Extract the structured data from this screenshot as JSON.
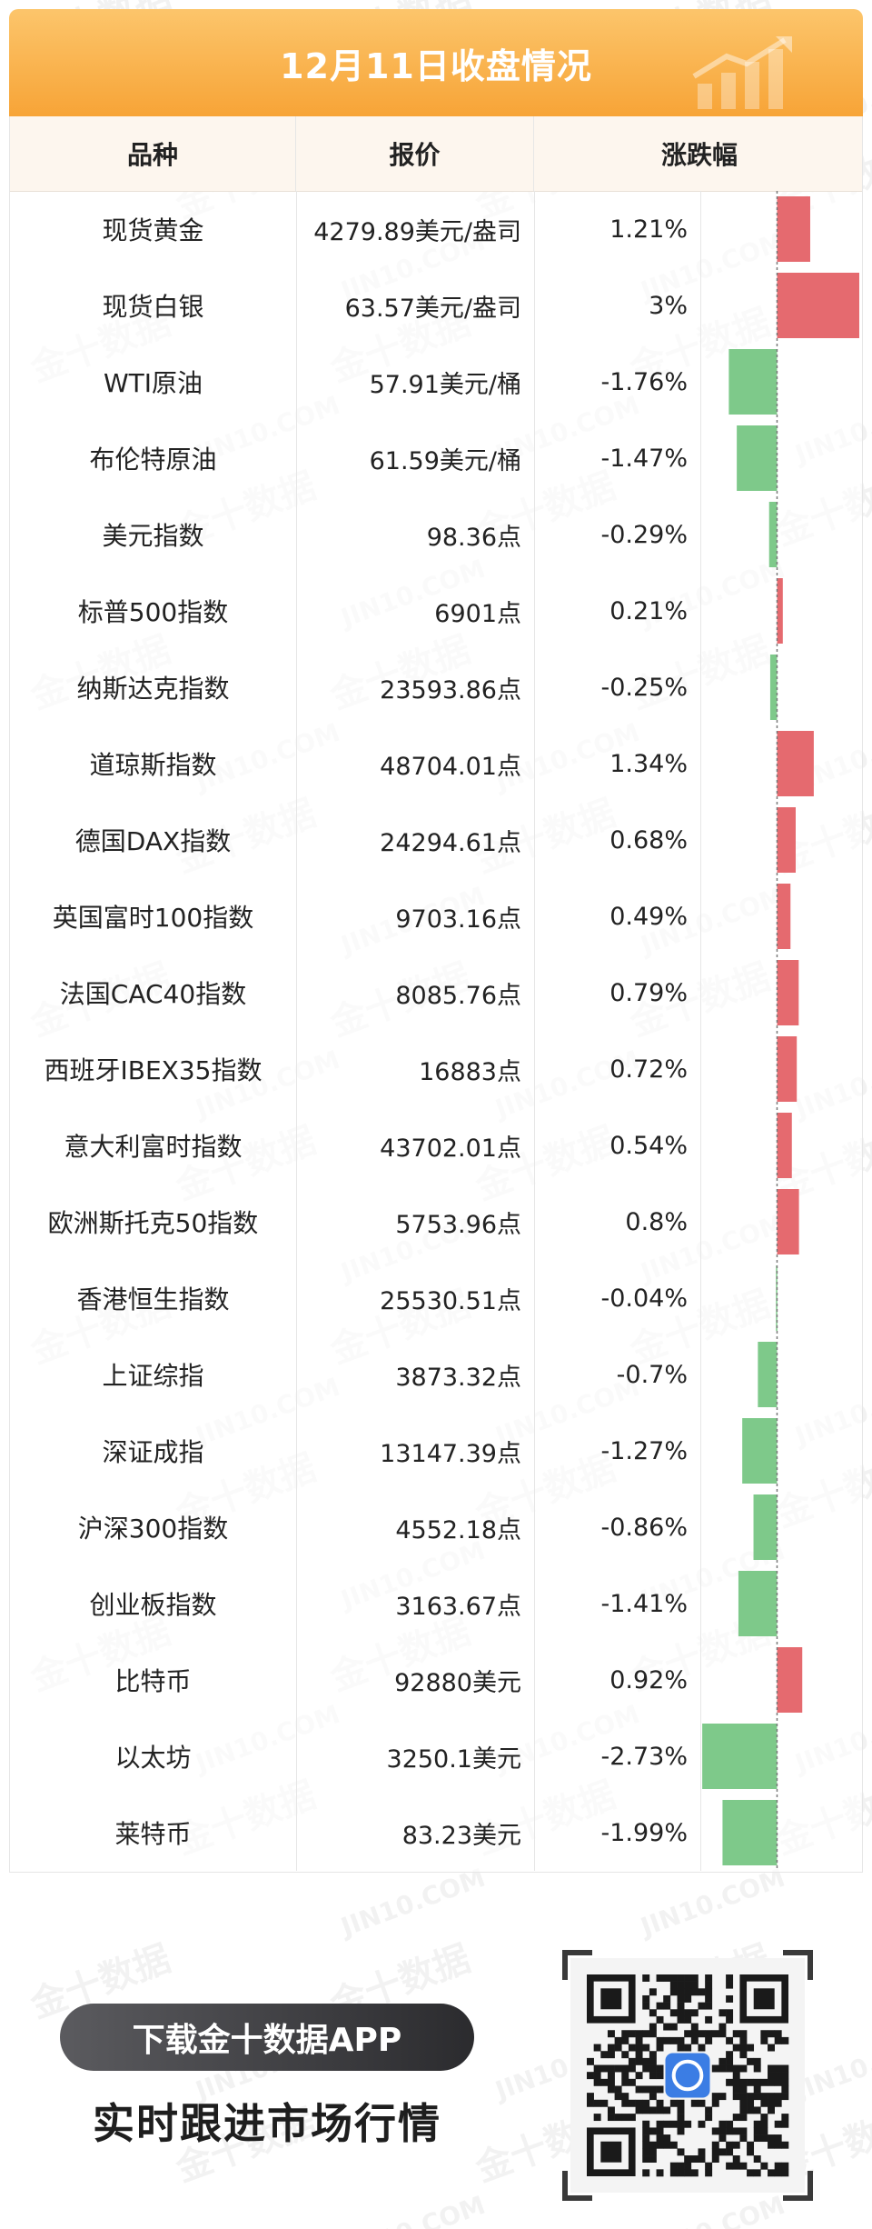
{
  "header": {
    "title": "12月11日收盘情况",
    "deco_icon": "rising-chart-icon"
  },
  "table": {
    "headers": [
      "品种",
      "报价",
      "涨跌幅"
    ]
  },
  "chart_data": {
    "type": "bar",
    "orientation": "horizontal",
    "categories": [
      "现货黄金",
      "现货白银",
      "WTI原油",
      "布伦特原油",
      "美元指数",
      "标普500指数",
      "纳斯达克指数",
      "道琼斯指数",
      "德国DAX指数",
      "英国富时100指数",
      "法国CAC40指数",
      "西班牙IBEX35指数",
      "意大利富时指数",
      "欧洲斯托克50指数",
      "香港恒生指数",
      "上证综指",
      "深证成指",
      "沪深300指数",
      "创业板指数",
      "比特币",
      "以太坊",
      "莱特币"
    ],
    "prices": [
      "4279.89美元/盎司",
      "63.57美元/盎司",
      "57.91美元/桶",
      "61.59美元/桶",
      "98.36点",
      "6901点",
      "23593.86点",
      "48704.01点",
      "24294.61点",
      "9703.16点",
      "8085.76点",
      "16883点",
      "43702.01点",
      "5753.96点",
      "25530.51点",
      "3873.32点",
      "13147.39点",
      "4552.18点",
      "3163.67点",
      "92880美元",
      "3250.1美元",
      "83.23美元"
    ],
    "change_labels": [
      "1.21%",
      "3%",
      "-1.76%",
      "-1.47%",
      "-0.29%",
      "0.21%",
      "-0.25%",
      "1.34%",
      "0.68%",
      "0.49%",
      "0.79%",
      "0.72%",
      "0.54%",
      "0.8%",
      "-0.04%",
      "-0.7%",
      "-1.27%",
      "-0.86%",
      "-1.41%",
      "0.92%",
      "-2.73%",
      "-1.99%"
    ],
    "values": [
      1.21,
      3,
      -1.76,
      -1.47,
      -0.29,
      0.21,
      -0.25,
      1.34,
      0.68,
      0.49,
      0.79,
      0.72,
      0.54,
      0.8,
      -0.04,
      -0.7,
      -1.27,
      -0.86,
      -1.41,
      0.92,
      -2.73,
      -1.99
    ],
    "xlim": [
      -2.8,
      3.1
    ],
    "colors": {
      "positive": "#e56a6f",
      "negative": "#7ec98a",
      "zero_line": "#7a7a7a"
    }
  },
  "footer": {
    "download_label": "下载金十数据APP",
    "slogan": "实时跟进市场行情",
    "qr_icon": "qr-code-icon",
    "qr_center_icon": "jin10-app-logo-icon"
  },
  "watermark": {
    "text_cn": "金十数据",
    "text_en": "JIN10.COM"
  }
}
